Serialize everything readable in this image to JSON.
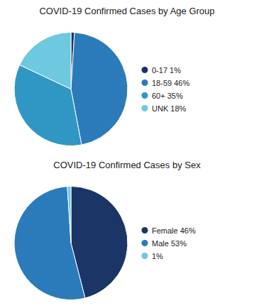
{
  "chart_data": [
    {
      "type": "pie",
      "title": "COVID-19 Confirmed Cases by Age Group",
      "categories": [
        "0-17 1%",
        "18-59 46%",
        "60+ 35%",
        "UNK 18%"
      ],
      "values": [
        1,
        46,
        35,
        18
      ],
      "colors": [
        "#1a3566",
        "#2b7bba",
        "#3097c4",
        "#6dc8e0"
      ],
      "legend": "right"
    },
    {
      "type": "pie",
      "title": "COVID-19 Confirmed Cases by Sex",
      "categories": [
        "Female 46%",
        "Male 53%",
        "1%"
      ],
      "values": [
        46,
        53,
        1
      ],
      "colors": [
        "#1a3566",
        "#2b7bba",
        "#6dc8e0"
      ],
      "legend": "right"
    }
  ]
}
